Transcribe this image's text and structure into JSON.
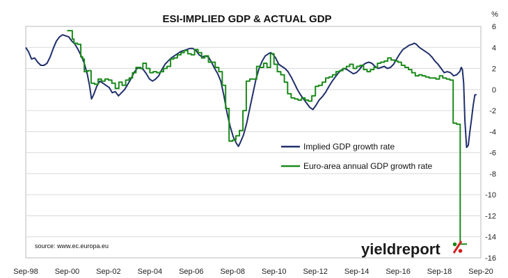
{
  "chart_data": {
    "type": "line",
    "title": "ESI-IMPLIED GDP & ACTUAL GDP",
    "unit": "%",
    "ylim": [
      -16,
      6
    ],
    "yticks": [
      6,
      4,
      2,
      0,
      -2,
      -4,
      -6,
      -8,
      -10,
      -12,
      -14,
      -16
    ],
    "xlim": [
      1998.67,
      2020.67
    ],
    "xticks": [
      {
        "x": 1998.67,
        "label": "Sep-98"
      },
      {
        "x": 2000.67,
        "label": "Sep-00"
      },
      {
        "x": 2002.67,
        "label": "Sep-02"
      },
      {
        "x": 2004.67,
        "label": "Sep-04"
      },
      {
        "x": 2006.67,
        "label": "Sep-06"
      },
      {
        "x": 2008.67,
        "label": "Sep-08"
      },
      {
        "x": 2010.67,
        "label": "Sep-10"
      },
      {
        "x": 2012.67,
        "label": "Sep-12"
      },
      {
        "x": 2014.67,
        "label": "Sep-14"
      },
      {
        "x": 2016.67,
        "label": "Sep-16"
      },
      {
        "x": 2018.67,
        "label": "Sep-18"
      },
      {
        "x": 2020.67,
        "label": "Sep-20"
      }
    ],
    "grid": "horizontal",
    "series": [
      {
        "name": "Implied GDP growth rate",
        "color": "#1f2f6b",
        "style": "line",
        "points": [
          [
            1998.67,
            4.0
          ],
          [
            1998.8,
            3.6
          ],
          [
            1998.95,
            2.9
          ],
          [
            1999.1,
            3.0
          ],
          [
            1999.25,
            2.6
          ],
          [
            1999.4,
            2.3
          ],
          [
            1999.55,
            2.3
          ],
          [
            1999.7,
            2.5
          ],
          [
            1999.85,
            3.1
          ],
          [
            2000.0,
            3.9
          ],
          [
            2000.15,
            4.6
          ],
          [
            2000.3,
            5.0
          ],
          [
            2000.45,
            5.2
          ],
          [
            2000.6,
            5.1
          ],
          [
            2000.75,
            5.0
          ],
          [
            2000.9,
            4.6
          ],
          [
            2001.05,
            4.3
          ],
          [
            2001.2,
            3.8
          ],
          [
            2001.35,
            3.2
          ],
          [
            2001.5,
            2.5
          ],
          [
            2001.65,
            1.4
          ],
          [
            2001.75,
            0.4
          ],
          [
            2001.85,
            -0.9
          ],
          [
            2001.95,
            -0.5
          ],
          [
            2002.1,
            0.3
          ],
          [
            2002.25,
            0.8
          ],
          [
            2002.4,
            0.6
          ],
          [
            2002.55,
            0.4
          ],
          [
            2002.7,
            0.2
          ],
          [
            2002.85,
            -0.3
          ],
          [
            2003.0,
            -0.2
          ],
          [
            2003.15,
            -0.6
          ],
          [
            2003.3,
            -0.3
          ],
          [
            2003.45,
            0.0
          ],
          [
            2003.6,
            0.5
          ],
          [
            2003.75,
            1.0
          ],
          [
            2003.9,
            1.6
          ],
          [
            2004.05,
            2.0
          ],
          [
            2004.2,
            2.1
          ],
          [
            2004.35,
            1.9
          ],
          [
            2004.5,
            1.5
          ],
          [
            2004.65,
            1.0
          ],
          [
            2004.8,
            0.8
          ],
          [
            2004.95,
            1.0
          ],
          [
            2005.1,
            1.3
          ],
          [
            2005.25,
            1.9
          ],
          [
            2005.4,
            2.4
          ],
          [
            2005.55,
            2.7
          ],
          [
            2005.7,
            3.0
          ],
          [
            2005.85,
            3.2
          ],
          [
            2006.0,
            3.4
          ],
          [
            2006.15,
            3.6
          ],
          [
            2006.3,
            3.7
          ],
          [
            2006.45,
            3.8
          ],
          [
            2006.6,
            3.9
          ],
          [
            2006.75,
            3.9
          ],
          [
            2006.9,
            3.7
          ],
          [
            2007.05,
            3.3
          ],
          [
            2007.2,
            3.1
          ],
          [
            2007.35,
            3.2
          ],
          [
            2007.5,
            3.1
          ],
          [
            2007.65,
            2.6
          ],
          [
            2007.8,
            2.0
          ],
          [
            2007.95,
            1.5
          ],
          [
            2008.1,
            0.8
          ],
          [
            2008.25,
            -0.6
          ],
          [
            2008.4,
            -2.2
          ],
          [
            2008.55,
            -3.5
          ],
          [
            2008.7,
            -4.5
          ],
          [
            2008.85,
            -5.1
          ],
          [
            2008.95,
            -5.4
          ],
          [
            2009.05,
            -5.0
          ],
          [
            2009.2,
            -4.3
          ],
          [
            2009.35,
            -3.2
          ],
          [
            2009.5,
            -1.8
          ],
          [
            2009.65,
            -0.4
          ],
          [
            2009.8,
            1.0
          ],
          [
            2009.95,
            2.0
          ],
          [
            2010.1,
            2.7
          ],
          [
            2010.25,
            3.2
          ],
          [
            2010.4,
            3.4
          ],
          [
            2010.5,
            3.5
          ],
          [
            2010.6,
            3.4
          ],
          [
            2010.75,
            3.0
          ],
          [
            2010.9,
            2.4
          ],
          [
            2011.05,
            2.2
          ],
          [
            2011.2,
            2.0
          ],
          [
            2011.35,
            1.7
          ],
          [
            2011.5,
            1.2
          ],
          [
            2011.65,
            0.6
          ],
          [
            2011.8,
            0.0
          ],
          [
            2011.95,
            -0.5
          ],
          [
            2012.1,
            -0.9
          ],
          [
            2012.25,
            -1.3
          ],
          [
            2012.4,
            -1.7
          ],
          [
            2012.55,
            -1.9
          ],
          [
            2012.7,
            -1.5
          ],
          [
            2012.85,
            -1.0
          ],
          [
            2013.0,
            -0.7
          ],
          [
            2013.15,
            -0.3
          ],
          [
            2013.3,
            0.2
          ],
          [
            2013.45,
            0.7
          ],
          [
            2013.6,
            1.1
          ],
          [
            2013.75,
            1.5
          ],
          [
            2013.9,
            1.8
          ],
          [
            2014.05,
            2.0
          ],
          [
            2014.2,
            1.9
          ],
          [
            2014.35,
            1.7
          ],
          [
            2014.5,
            1.5
          ],
          [
            2014.65,
            1.6
          ],
          [
            2014.8,
            1.9
          ],
          [
            2014.95,
            2.3
          ],
          [
            2015.1,
            2.5
          ],
          [
            2015.25,
            2.6
          ],
          [
            2015.4,
            2.5
          ],
          [
            2015.55,
            2.2
          ],
          [
            2015.7,
            2.0
          ],
          [
            2015.85,
            2.1
          ],
          [
            2016.0,
            2.2
          ],
          [
            2016.15,
            2.0
          ],
          [
            2016.3,
            2.1
          ],
          [
            2016.45,
            2.4
          ],
          [
            2016.6,
            2.9
          ],
          [
            2016.75,
            3.4
          ],
          [
            2016.9,
            3.8
          ],
          [
            2017.05,
            4.0
          ],
          [
            2017.2,
            4.2
          ],
          [
            2017.35,
            4.3
          ],
          [
            2017.45,
            4.4
          ],
          [
            2017.55,
            4.3
          ],
          [
            2017.7,
            4.0
          ],
          [
            2017.85,
            3.8
          ],
          [
            2018.0,
            3.6
          ],
          [
            2018.15,
            3.4
          ],
          [
            2018.3,
            3.1
          ],
          [
            2018.45,
            2.7
          ],
          [
            2018.6,
            2.4
          ],
          [
            2018.75,
            2.0
          ],
          [
            2018.9,
            1.6
          ],
          [
            2019.05,
            1.7
          ],
          [
            2019.2,
            1.6
          ],
          [
            2019.35,
            1.3
          ],
          [
            2019.5,
            1.4
          ],
          [
            2019.65,
            1.7
          ],
          [
            2019.72,
            2.1
          ],
          [
            2019.78,
            1.9
          ],
          [
            2019.84,
            0.6
          ],
          [
            2019.9,
            -3.0
          ],
          [
            2019.98,
            -5.5
          ],
          [
            2020.06,
            -5.3
          ],
          [
            2020.14,
            -4.0
          ],
          [
            2020.22,
            -2.8
          ],
          [
            2020.3,
            -1.5
          ],
          [
            2020.38,
            -0.5
          ],
          [
            2020.46,
            -0.5
          ]
        ]
      },
      {
        "name": "Euro-area annual GDP growth rate",
        "color": "#1a8a1a",
        "style": "step",
        "points": [
          [
            2000.67,
            5.6
          ],
          [
            2000.92,
            4.8
          ],
          [
            2001.0,
            4.4
          ],
          [
            2001.17,
            4.3
          ],
          [
            2001.33,
            3.1
          ],
          [
            2001.42,
            2.9
          ],
          [
            2001.5,
            1.7
          ],
          [
            2001.67,
            1.8
          ],
          [
            2001.83,
            0.6
          ],
          [
            2002.0,
            0.5
          ],
          [
            2002.17,
            1.0
          ],
          [
            2002.33,
            0.8
          ],
          [
            2002.5,
            1.0
          ],
          [
            2002.67,
            0.9
          ],
          [
            2002.83,
            0.6
          ],
          [
            2003.0,
            0.1
          ],
          [
            2003.17,
            0.7
          ],
          [
            2003.33,
            0.4
          ],
          [
            2003.5,
            0.9
          ],
          [
            2003.67,
            1.1
          ],
          [
            2003.83,
            1.6
          ],
          [
            2004.0,
            2.1
          ],
          [
            2004.17,
            2.0
          ],
          [
            2004.33,
            2.5
          ],
          [
            2004.5,
            2.0
          ],
          [
            2004.67,
            1.6
          ],
          [
            2004.83,
            1.7
          ],
          [
            2005.0,
            1.6
          ],
          [
            2005.17,
            1.7
          ],
          [
            2005.33,
            2.0
          ],
          [
            2005.5,
            2.2
          ],
          [
            2005.67,
            2.9
          ],
          [
            2005.83,
            3.0
          ],
          [
            2006.0,
            3.3
          ],
          [
            2006.17,
            3.5
          ],
          [
            2006.33,
            3.7
          ],
          [
            2006.5,
            3.4
          ],
          [
            2006.67,
            3.3
          ],
          [
            2006.83,
            3.8
          ],
          [
            2007.0,
            3.5
          ],
          [
            2007.17,
            3.0
          ],
          [
            2007.33,
            3.2
          ],
          [
            2007.5,
            2.6
          ],
          [
            2007.67,
            2.6
          ],
          [
            2007.83,
            2.1
          ],
          [
            2008.0,
            1.7
          ],
          [
            2008.17,
            0.4
          ],
          [
            2008.33,
            -1.8
          ],
          [
            2008.5,
            -4.9
          ],
          [
            2008.67,
            -4.8
          ],
          [
            2008.83,
            -4.4
          ],
          [
            2009.0,
            -3.9
          ],
          [
            2009.17,
            -2.0
          ],
          [
            2009.33,
            0.8
          ],
          [
            2009.5,
            1.0
          ],
          [
            2009.67,
            1.0
          ],
          [
            2009.83,
            2.2
          ],
          [
            2010.0,
            2.1
          ],
          [
            2010.17,
            2.5
          ],
          [
            2010.33,
            2.1
          ],
          [
            2010.5,
            3.4
          ],
          [
            2010.67,
            2.4
          ],
          [
            2010.83,
            1.7
          ],
          [
            2011.0,
            1.4
          ],
          [
            2011.17,
            0.7
          ],
          [
            2011.33,
            -0.4
          ],
          [
            2011.5,
            -0.8
          ],
          [
            2011.67,
            -0.9
          ],
          [
            2011.83,
            -1.0
          ],
          [
            2012.0,
            -0.8
          ],
          [
            2012.17,
            -1.0
          ],
          [
            2012.33,
            -1.1
          ],
          [
            2012.5,
            -0.6
          ],
          [
            2012.67,
            0.3
          ],
          [
            2012.83,
            0.4
          ],
          [
            2013.0,
            0.7
          ],
          [
            2013.17,
            1.1
          ],
          [
            2013.33,
            1.2
          ],
          [
            2013.5,
            1.4
          ],
          [
            2013.67,
            1.7
          ],
          [
            2013.83,
            1.8
          ],
          [
            2014.0,
            2.0
          ],
          [
            2014.17,
            2.2
          ],
          [
            2014.33,
            2.4
          ],
          [
            2014.5,
            2.0
          ],
          [
            2014.67,
            2.2
          ],
          [
            2014.83,
            2.3
          ],
          [
            2015.0,
            1.9
          ],
          [
            2015.17,
            1.7
          ],
          [
            2015.33,
            1.9
          ],
          [
            2015.5,
            2.1
          ],
          [
            2015.67,
            2.5
          ],
          [
            2015.83,
            2.6
          ],
          [
            2016.0,
            2.7
          ],
          [
            2016.17,
            3.0
          ],
          [
            2016.33,
            2.8
          ],
          [
            2016.5,
            2.7
          ],
          [
            2016.67,
            2.6
          ],
          [
            2016.83,
            2.3
          ],
          [
            2017.0,
            2.1
          ],
          [
            2017.17,
            1.9
          ],
          [
            2017.33,
            1.6
          ],
          [
            2017.5,
            1.3
          ],
          [
            2017.67,
            1.4
          ],
          [
            2017.83,
            1.3
          ],
          [
            2018.0,
            1.2
          ],
          [
            2018.17,
            1.1
          ],
          [
            2018.33,
            1.1
          ],
          [
            2018.5,
            1.0
          ],
          [
            2018.67,
            1.3
          ],
          [
            2018.83,
            1.1
          ],
          [
            2019.0,
            1.0
          ],
          [
            2019.17,
            0.9
          ],
          [
            2019.33,
            -3.2
          ],
          [
            2019.5,
            -3.3
          ],
          [
            2019.67,
            -14.7
          ],
          [
            2019.83,
            -14.7
          ]
        ]
      }
    ],
    "legend": {
      "placement": "center-right"
    },
    "source": "source: www.ec.europa.eu",
    "logo_text": "yieldreport"
  }
}
